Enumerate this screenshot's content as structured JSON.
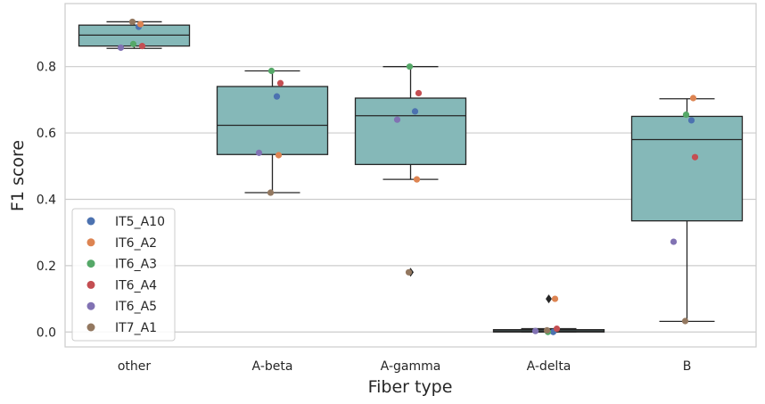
{
  "chart_data": {
    "type": "box",
    "xlabel": "Fiber type",
    "ylabel": "F1 score",
    "categories": [
      "other",
      "A-beta",
      "A-gamma",
      "A-delta",
      "B"
    ],
    "yticks": [
      "0.0",
      "0.2",
      "0.4",
      "0.6",
      "0.8"
    ],
    "ylim": [
      -0.045,
      0.99
    ],
    "grid": "horizontal",
    "legend_position": "left-lower",
    "box_color": "#85b8b8",
    "boxes": [
      {
        "category": "other",
        "whisker_low": 0.855,
        "q1": 0.862,
        "median": 0.895,
        "q3": 0.925,
        "whisker_high": 0.935,
        "outliers": []
      },
      {
        "category": "A-beta",
        "whisker_low": 0.42,
        "q1": 0.535,
        "median": 0.623,
        "q3": 0.74,
        "whisker_high": 0.787,
        "outliers": []
      },
      {
        "category": "A-gamma",
        "whisker_low": 0.46,
        "q1": 0.505,
        "median": 0.652,
        "q3": 0.705,
        "whisker_high": 0.8,
        "outliers": [
          0.18
        ]
      },
      {
        "category": "A-delta",
        "whisker_low": 0.0,
        "q1": 0.0,
        "median": 0.003,
        "q3": 0.007,
        "whisker_high": 0.01,
        "outliers": [
          0.1
        ]
      },
      {
        "category": "B",
        "whisker_low": 0.032,
        "q1": 0.335,
        "median": 0.58,
        "q3": 0.65,
        "whisker_high": 0.703,
        "outliers": []
      }
    ],
    "series": [
      {
        "name": "IT5_A10",
        "color": "#4c72b0",
        "values": [
          0.92,
          0.71,
          0.665,
          0.0,
          0.638
        ]
      },
      {
        "name": "IT6_A2",
        "color": "#dd8452",
        "values": [
          0.928,
          0.533,
          0.46,
          0.1,
          0.705
        ]
      },
      {
        "name": "IT6_A3",
        "color": "#55a868",
        "values": [
          0.868,
          0.787,
          0.8,
          0.0,
          0.655
        ]
      },
      {
        "name": "IT6_A4",
        "color": "#c44e52",
        "values": [
          0.862,
          0.75,
          0.72,
          0.01,
          0.527
        ]
      },
      {
        "name": "IT6_A5",
        "color": "#8172b3",
        "values": [
          0.857,
          0.54,
          0.64,
          0.003,
          0.272
        ]
      },
      {
        "name": "IT7_A1",
        "color": "#937860",
        "values": [
          0.935,
          0.42,
          0.18,
          0.005,
          0.033
        ]
      }
    ]
  }
}
